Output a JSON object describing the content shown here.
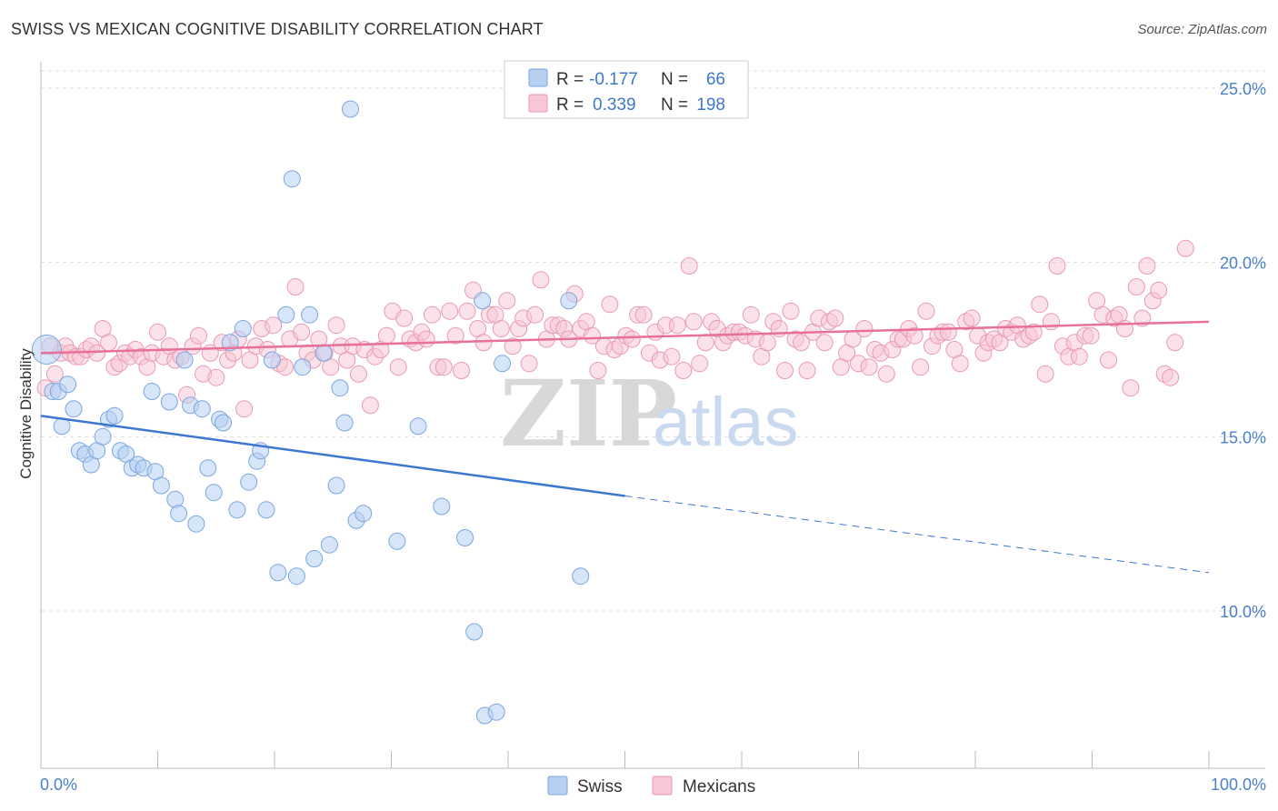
{
  "title": "SWISS VS MEXICAN COGNITIVE DISABILITY CORRELATION CHART",
  "source": "Source: ZipAtlas.com",
  "watermark": {
    "part1": "ZIP",
    "part2": "atlas"
  },
  "legend": {
    "r_label": "R =",
    "n_label": "N =",
    "rows": [
      {
        "r": "-0.177",
        "n": "66",
        "swatch_fill": "#b7d0f2",
        "swatch_stroke": "#7aa6e0"
      },
      {
        "r": "0.339",
        "n": "198",
        "swatch_fill": "#f8c6d4",
        "swatch_stroke": "#e89ab3"
      }
    ]
  },
  "bottom_legend": [
    {
      "label": "Swiss"
    },
    {
      "label": "Mexicans"
    }
  ],
  "chart_data": {
    "type": "scatter",
    "xlabel": "",
    "ylabel": "Cognitive Disability",
    "xlim": [
      0,
      100
    ],
    "ylim": [
      5,
      25.5
    ],
    "x_ticks": [
      {
        "value": 0,
        "label": "0.0%"
      },
      {
        "value": 100,
        "label": "100.0%"
      }
    ],
    "y_ticks": [
      {
        "value": 10,
        "label": "10.0%"
      },
      {
        "value": 15,
        "label": "15.0%"
      },
      {
        "value": 20,
        "label": "20.0%"
      },
      {
        "value": 25,
        "label": "25.0%"
      }
    ],
    "grid": true,
    "legend_position": "top-center",
    "colors": {
      "swiss_fill": "rgba(183,208,242,0.55)",
      "swiss_stroke": "#7aa6e0",
      "swiss_line": "#3d78d0",
      "mex_fill": "rgba(248,198,212,0.5)",
      "mex_stroke": "#e89ab3",
      "mex_line": "#e8719a",
      "tick_label": "#4a80c8",
      "grid": "#dddddd"
    },
    "series": [
      {
        "name": "Swiss",
        "points": [
          [
            0.5,
            17.5
          ],
          [
            1,
            16.3
          ],
          [
            1.5,
            16.3
          ],
          [
            1.8,
            15.3
          ],
          [
            2.3,
            16.5
          ],
          [
            2.8,
            15.8
          ],
          [
            3.3,
            14.6
          ],
          [
            3.8,
            14.5
          ],
          [
            4.3,
            14.2
          ],
          [
            4.8,
            14.6
          ],
          [
            5.3,
            15
          ],
          [
            5.8,
            15.5
          ],
          [
            6.3,
            15.6
          ],
          [
            6.8,
            14.6
          ],
          [
            7.3,
            14.5
          ],
          [
            7.8,
            14.1
          ],
          [
            8.3,
            14.2
          ],
          [
            8.8,
            14.1
          ],
          [
            9.5,
            16.3
          ],
          [
            9.8,
            14
          ],
          [
            10.3,
            13.6
          ],
          [
            11,
            16
          ],
          [
            11.5,
            13.2
          ],
          [
            11.8,
            12.8
          ],
          [
            12.3,
            17.2
          ],
          [
            12.8,
            15.9
          ],
          [
            13.3,
            12.5
          ],
          [
            13.8,
            15.8
          ],
          [
            14.3,
            14.1
          ],
          [
            14.8,
            13.4
          ],
          [
            15.3,
            15.5
          ],
          [
            15.6,
            15.4
          ],
          [
            16.2,
            17.7
          ],
          [
            16.8,
            12.9
          ],
          [
            17.3,
            18.1
          ],
          [
            17.8,
            13.7
          ],
          [
            18.5,
            14.3
          ],
          [
            18.8,
            14.6
          ],
          [
            19.3,
            12.9
          ],
          [
            19.8,
            17.2
          ],
          [
            20.3,
            11.1
          ],
          [
            21,
            18.5
          ],
          [
            21.5,
            22.4
          ],
          [
            21.9,
            11
          ],
          [
            22.4,
            17
          ],
          [
            23,
            18.5
          ],
          [
            23.4,
            11.5
          ],
          [
            24.2,
            17.4
          ],
          [
            24.7,
            11.9
          ],
          [
            25.3,
            13.6
          ],
          [
            25.6,
            16.4
          ],
          [
            26,
            15.4
          ],
          [
            26.5,
            24.4
          ],
          [
            27,
            12.6
          ],
          [
            27.6,
            12.8
          ],
          [
            30.5,
            12
          ],
          [
            32.3,
            15.3
          ],
          [
            34.3,
            13
          ],
          [
            36.3,
            12.1
          ],
          [
            37.1,
            9.4
          ],
          [
            37.8,
            18.9
          ],
          [
            38,
            7
          ],
          [
            39,
            7.1
          ],
          [
            39.5,
            17.1
          ],
          [
            45.2,
            18.9
          ],
          [
            46.2,
            11
          ]
        ]
      },
      {
        "name": "Mexicans",
        "points": [
          [
            0.4,
            16.4
          ],
          [
            0.8,
            17.6
          ],
          [
            1.2,
            16.8
          ],
          [
            1.7,
            17.4
          ],
          [
            2.1,
            17.6
          ],
          [
            2.5,
            17.4
          ],
          [
            3,
            17.3
          ],
          [
            3.4,
            17.3
          ],
          [
            3.9,
            17.5
          ],
          [
            4.3,
            17.6
          ],
          [
            4.8,
            17.4
          ],
          [
            5.3,
            18.1
          ],
          [
            5.8,
            17.7
          ],
          [
            6.3,
            17
          ],
          [
            6.7,
            17.1
          ],
          [
            7.2,
            17.4
          ],
          [
            7.6,
            17.3
          ],
          [
            8.1,
            17.5
          ],
          [
            8.6,
            17.3
          ],
          [
            9.1,
            17
          ],
          [
            9.5,
            17.4
          ],
          [
            10,
            18
          ],
          [
            10.5,
            17.3
          ],
          [
            11,
            17.6
          ],
          [
            11.5,
            17.2
          ],
          [
            12,
            17.3
          ],
          [
            12.5,
            16.2
          ],
          [
            13,
            17.6
          ],
          [
            13.5,
            17.9
          ],
          [
            13.9,
            16.8
          ],
          [
            14.5,
            17.4
          ],
          [
            15,
            16.7
          ],
          [
            15.5,
            17.7
          ],
          [
            16,
            17.2
          ],
          [
            16.5,
            17.4
          ],
          [
            16.9,
            17.8
          ],
          [
            17.4,
            15.8
          ],
          [
            17.9,
            17.2
          ],
          [
            18.4,
            17.6
          ],
          [
            18.9,
            18.1
          ],
          [
            19.4,
            17.5
          ],
          [
            19.9,
            18.2
          ],
          [
            20.4,
            17.1
          ],
          [
            20.9,
            17
          ],
          [
            21.3,
            17.8
          ],
          [
            21.8,
            19.3
          ],
          [
            22.3,
            18
          ],
          [
            22.8,
            17.4
          ],
          [
            23.3,
            17.2
          ],
          [
            23.8,
            17.8
          ],
          [
            24.3,
            17.4
          ],
          [
            24.8,
            17
          ],
          [
            25.3,
            18.2
          ],
          [
            25.7,
            17.6
          ],
          [
            26.2,
            17.2
          ],
          [
            26.7,
            17.6
          ],
          [
            27.2,
            16.8
          ],
          [
            27.7,
            17.5
          ],
          [
            28.2,
            15.9
          ],
          [
            28.6,
            17.3
          ],
          [
            29.1,
            17.5
          ],
          [
            29.6,
            17.9
          ],
          [
            30.1,
            18.6
          ],
          [
            30.6,
            17
          ],
          [
            31.1,
            18.4
          ],
          [
            31.6,
            17.8
          ],
          [
            32.1,
            17.7
          ],
          [
            32.6,
            18
          ],
          [
            33,
            17.8
          ],
          [
            33.5,
            18.5
          ],
          [
            34,
            17
          ],
          [
            34.5,
            17
          ],
          [
            35,
            18.6
          ],
          [
            35.5,
            17.9
          ],
          [
            36,
            16.9
          ],
          [
            36.5,
            18.6
          ],
          [
            37,
            19.2
          ],
          [
            37.4,
            18.1
          ],
          [
            37.9,
            17.7
          ],
          [
            38.4,
            18.5
          ],
          [
            38.9,
            18.5
          ],
          [
            39.4,
            18.1
          ],
          [
            39.9,
            18.9
          ],
          [
            40.4,
            17.6
          ],
          [
            40.9,
            18.1
          ],
          [
            41.3,
            18.4
          ],
          [
            41.8,
            17.1
          ],
          [
            42.3,
            18.5
          ],
          [
            42.8,
            19.5
          ],
          [
            43.3,
            17.8
          ],
          [
            43.8,
            18.2
          ],
          [
            44.3,
            18.2
          ],
          [
            44.8,
            18.1
          ],
          [
            45.2,
            17.8
          ],
          [
            45.7,
            19.1
          ],
          [
            46.2,
            18.1
          ],
          [
            46.7,
            18.3
          ],
          [
            47.2,
            17.9
          ],
          [
            47.7,
            16.9
          ],
          [
            48.2,
            17.6
          ],
          [
            48.7,
            18.8
          ],
          [
            49.1,
            17.5
          ],
          [
            49.6,
            17.6
          ],
          [
            50.1,
            17.9
          ],
          [
            50.6,
            17.8
          ],
          [
            51.1,
            18.5
          ],
          [
            51.6,
            18.5
          ],
          [
            52.1,
            17.4
          ],
          [
            52.6,
            18
          ],
          [
            53,
            17.2
          ],
          [
            53.5,
            18.2
          ],
          [
            54,
            17.3
          ],
          [
            54.5,
            18.2
          ],
          [
            55,
            16.9
          ],
          [
            55.5,
            19.9
          ],
          [
            55.9,
            18.3
          ],
          [
            56.4,
            17.1
          ],
          [
            56.9,
            17.7
          ],
          [
            57.4,
            18.3
          ],
          [
            57.9,
            18.1
          ],
          [
            58.4,
            17.7
          ],
          [
            58.8,
            17.9
          ],
          [
            59.3,
            18
          ],
          [
            59.8,
            18
          ],
          [
            60.3,
            17.9
          ],
          [
            60.8,
            18.5
          ],
          [
            61.2,
            17.8
          ],
          [
            61.7,
            17.3
          ],
          [
            62.2,
            17.7
          ],
          [
            62.7,
            18.3
          ],
          [
            63.2,
            18.1
          ],
          [
            63.7,
            16.9
          ],
          [
            64.2,
            18.6
          ],
          [
            64.6,
            17.8
          ],
          [
            65.1,
            17.7
          ],
          [
            65.6,
            16.9
          ],
          [
            66.1,
            18
          ],
          [
            66.6,
            18.4
          ],
          [
            67.1,
            17.7
          ],
          [
            67.5,
            18.3
          ],
          [
            68,
            18.4
          ],
          [
            68.5,
            17
          ],
          [
            69,
            17.4
          ],
          [
            69.5,
            17.8
          ],
          [
            70,
            17.1
          ],
          [
            70.5,
            18.1
          ],
          [
            70.9,
            17
          ],
          [
            71.4,
            17.5
          ],
          [
            71.9,
            17.4
          ],
          [
            72.4,
            16.8
          ],
          [
            72.9,
            17.5
          ],
          [
            73.4,
            17.8
          ],
          [
            73.8,
            17.8
          ],
          [
            74.3,
            18.1
          ],
          [
            74.8,
            17.9
          ],
          [
            75.3,
            17
          ],
          [
            75.8,
            18.6
          ],
          [
            76.3,
            17.6
          ],
          [
            76.8,
            17.9
          ],
          [
            77.2,
            18
          ],
          [
            77.7,
            18
          ],
          [
            78.2,
            17.5
          ],
          [
            78.7,
            17.1
          ],
          [
            79.2,
            18.3
          ],
          [
            79.7,
            18.4
          ],
          [
            80.2,
            17.9
          ],
          [
            80.7,
            17.4
          ],
          [
            81.1,
            17.7
          ],
          [
            81.6,
            17.8
          ],
          [
            82.1,
            17.7
          ],
          [
            82.6,
            18.1
          ],
          [
            83.1,
            18
          ],
          [
            83.6,
            18.2
          ],
          [
            84.1,
            17.8
          ],
          [
            84.6,
            17.9
          ],
          [
            85,
            18
          ],
          [
            85.5,
            18.8
          ],
          [
            86,
            16.8
          ],
          [
            86.5,
            18.3
          ],
          [
            87,
            19.9
          ],
          [
            87.5,
            17.6
          ],
          [
            88,
            17.3
          ],
          [
            88.5,
            17.7
          ],
          [
            88.9,
            17.3
          ],
          [
            89.4,
            17.9
          ],
          [
            89.9,
            17.9
          ],
          [
            90.4,
            18.9
          ],
          [
            90.9,
            18.5
          ],
          [
            91.4,
            17.2
          ],
          [
            91.9,
            18.4
          ],
          [
            92.3,
            18.5
          ],
          [
            92.8,
            18.1
          ],
          [
            93.3,
            16.4
          ],
          [
            93.8,
            19.3
          ],
          [
            94.3,
            18.4
          ],
          [
            94.7,
            19.9
          ],
          [
            95.2,
            18.9
          ],
          [
            95.7,
            19.2
          ],
          [
            96.2,
            16.8
          ],
          [
            96.7,
            16.7
          ],
          [
            97.1,
            17.7
          ],
          [
            98,
            20.4
          ]
        ]
      }
    ],
    "trend_lines": [
      {
        "series": "Swiss",
        "solid_from": [
          0,
          15.6
        ],
        "solid_to": [
          50,
          13.3
        ],
        "dashed_to": [
          100,
          11.1
        ]
      },
      {
        "series": "Mexicans",
        "solid_from": [
          0,
          17.4
        ],
        "solid_to": [
          100,
          18.3
        ]
      }
    ]
  }
}
